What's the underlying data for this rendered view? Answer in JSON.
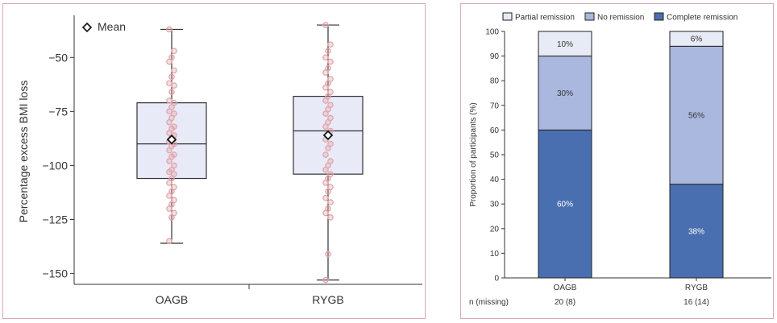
{
  "chart_data": [
    {
      "type": "box",
      "title": "",
      "ylabel": "Percentage excess BMI loss",
      "ylim": [
        -155,
        -32
      ],
      "yticks": [
        -50,
        -75,
        -100,
        -125,
        -150
      ],
      "legend": {
        "marker": "diamond",
        "label": "Mean",
        "position": "top-left"
      },
      "categories": [
        "OAGB",
        "RYGB"
      ],
      "boxes": [
        {
          "name": "OAGB",
          "min": -136,
          "q1": -106,
          "median": -90,
          "q3": -71,
          "max": -37,
          "mean": -88
        },
        {
          "name": "RYGB",
          "min": -153,
          "q1": -104,
          "median": -84,
          "q3": -68,
          "max": -35,
          "mean": -86
        }
      ],
      "points": {
        "OAGB": [
          -37,
          -47,
          -50,
          -52,
          -56,
          -59,
          -62,
          -63,
          -66,
          -70,
          -71,
          -73,
          -75,
          -76,
          -78,
          -80,
          -82,
          -83,
          -85,
          -86,
          -87,
          -89,
          -90,
          -91,
          -93,
          -95,
          -96,
          -98,
          -100,
          -102,
          -103,
          -104,
          -106,
          -108,
          -110,
          -112,
          -114,
          -116,
          -118,
          -120,
          -122,
          -124,
          -135
        ],
        "RYGB": [
          -35,
          -44,
          -47,
          -50,
          -52,
          -55,
          -57,
          -60,
          -62,
          -64,
          -66,
          -68,
          -70,
          -72,
          -74,
          -76,
          -78,
          -80,
          -82,
          -84,
          -86,
          -88,
          -90,
          -92,
          -95,
          -98,
          -100,
          -102,
          -104,
          -106,
          -108,
          -110,
          -112,
          -115,
          -117,
          -120,
          -122,
          -124,
          -141,
          -153
        ]
      }
    },
    {
      "type": "bar",
      "stacked": true,
      "ylabel": "Proportion of participants (%)",
      "ylim": [
        0,
        100
      ],
      "yticks": [
        0,
        10,
        20,
        30,
        40,
        50,
        60,
        70,
        80,
        90,
        100
      ],
      "categories": [
        "OAGB",
        "RYGB"
      ],
      "row_label": "n (missing)",
      "n_missing": [
        "20 (8)",
        "16 (14)"
      ],
      "series": [
        {
          "name": "Complete remission",
          "color": "#4a6fb0",
          "label_color": "#ffffff",
          "values": [
            60,
            38
          ],
          "labels": [
            "60%",
            "38%"
          ]
        },
        {
          "name": "No remission",
          "color": "#aab8df",
          "label_color": "#333333",
          "values": [
            30,
            56
          ],
          "labels": [
            "30%",
            "56%"
          ]
        },
        {
          "name": "Partial remission",
          "color": "#e7ebf6",
          "label_color": "#333333",
          "values": [
            10,
            6
          ],
          "labels": [
            "10%",
            "6%"
          ]
        }
      ],
      "legend_order": [
        "Partial remission",
        "No remission",
        "Complete remission"
      ]
    }
  ],
  "style": {
    "box_fill": "#e8eaf8",
    "point_color": "#e2a3a8",
    "axis_color": "#333333",
    "panel_border": "#d9a6bb"
  }
}
